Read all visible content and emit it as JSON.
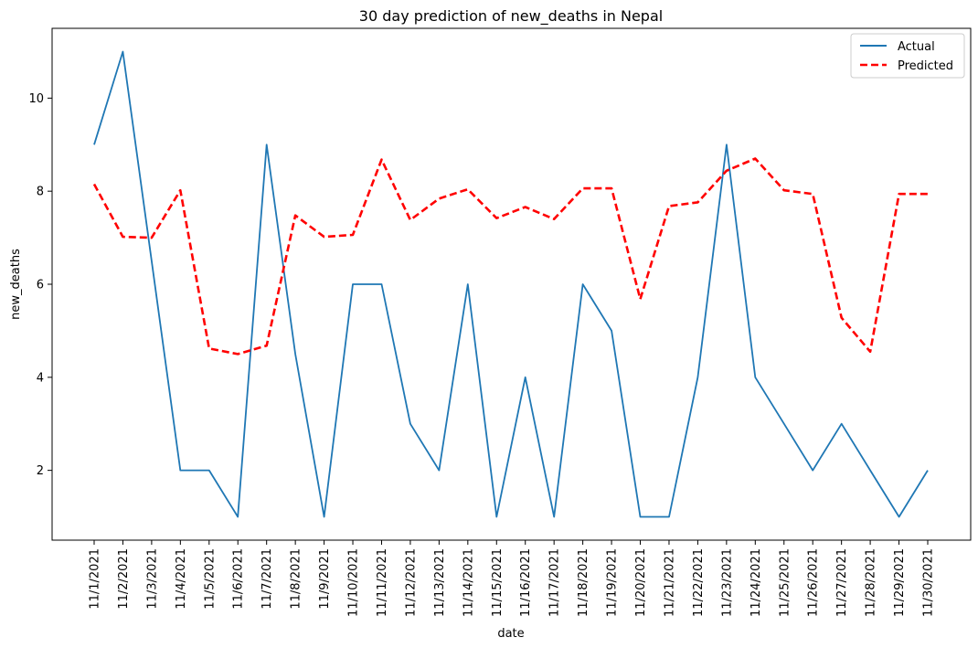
{
  "chart_data": {
    "type": "line",
    "title": "30 day prediction of new_deaths in Nepal",
    "xlabel": "date",
    "ylabel": "new_deaths",
    "ylim": [
      0.5,
      11.5
    ],
    "yticks": [
      2,
      4,
      6,
      8,
      10
    ],
    "grid": false,
    "legend_position": "top-right",
    "categories": [
      "11/1/2021",
      "11/2/2021",
      "11/3/2021",
      "11/4/2021",
      "11/5/2021",
      "11/6/2021",
      "11/7/2021",
      "11/8/2021",
      "11/9/2021",
      "11/10/2021",
      "11/11/2021",
      "11/12/2021",
      "11/13/2021",
      "11/14/2021",
      "11/15/2021",
      "11/16/2021",
      "11/17/2021",
      "11/18/2021",
      "11/19/2021",
      "11/20/2021",
      "11/21/2021",
      "11/22/2021",
      "11/23/2021",
      "11/24/2021",
      "11/25/2021",
      "11/26/2021",
      "11/27/2021",
      "11/28/2021",
      "11/29/2021",
      "11/30/2021"
    ],
    "series": [
      {
        "name": "Actual",
        "color": "#1f77b4",
        "style": "solid",
        "values": [
          9,
          11,
          6.5,
          2,
          2,
          1,
          9,
          4.5,
          1,
          6,
          6,
          3,
          2,
          6,
          1,
          4,
          1,
          6,
          5,
          1,
          1,
          4,
          9,
          4,
          3,
          2,
          3,
          2,
          1,
          2
        ]
      },
      {
        "name": "Predicted",
        "color": "#ff0000",
        "style": "dashed",
        "values": [
          8.15,
          7.02,
          7.0,
          8.02,
          4.62,
          4.5,
          4.68,
          7.48,
          7.02,
          7.06,
          8.68,
          7.38,
          7.84,
          8.04,
          7.42,
          7.66,
          7.4,
          8.06,
          8.06,
          5.68,
          7.68,
          7.76,
          8.44,
          8.7,
          8.02,
          7.94,
          5.28,
          4.55,
          7.94,
          7.94
        ]
      }
    ]
  }
}
